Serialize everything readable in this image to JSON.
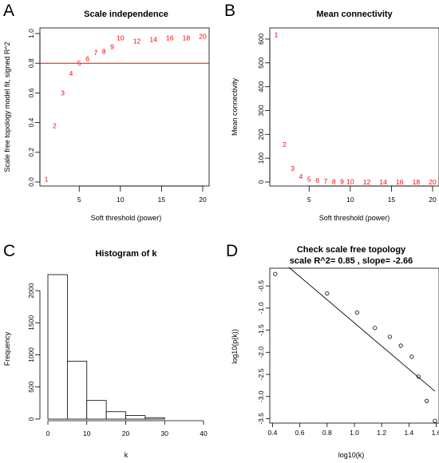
{
  "panels": [
    {
      "letter": "A"
    },
    {
      "letter": "B"
    },
    {
      "letter": "C"
    },
    {
      "letter": "D"
    }
  ],
  "colors": {
    "red": "#ff0000",
    "black": "#000000"
  },
  "chart_data": [
    {
      "type": "scatter",
      "title": "Scale independence",
      "xlabel": "Soft threshold (power)",
      "ylabel": "Scale free topology model fit, signed R^2",
      "xlim": [
        1,
        20
      ],
      "ylim": [
        0,
        1.0
      ],
      "xticks": [
        5,
        10,
        15,
        20
      ],
      "yticks": [
        0.0,
        0.2,
        0.4,
        0.6,
        0.8,
        1.0
      ],
      "hline": 0.8,
      "points": [
        {
          "x": 1,
          "y": 0.02,
          "label": "1"
        },
        {
          "x": 2,
          "y": 0.38,
          "label": "2"
        },
        {
          "x": 3,
          "y": 0.6,
          "label": "3"
        },
        {
          "x": 4,
          "y": 0.73,
          "label": "4"
        },
        {
          "x": 5,
          "y": 0.8,
          "label": "5"
        },
        {
          "x": 6,
          "y": 0.83,
          "label": "6"
        },
        {
          "x": 7,
          "y": 0.87,
          "label": "7"
        },
        {
          "x": 8,
          "y": 0.88,
          "label": "8"
        },
        {
          "x": 9,
          "y": 0.91,
          "label": "9"
        },
        {
          "x": 10,
          "y": 0.97,
          "label": "10"
        },
        {
          "x": 12,
          "y": 0.95,
          "label": "12"
        },
        {
          "x": 14,
          "y": 0.96,
          "label": "14"
        },
        {
          "x": 16,
          "y": 0.97,
          "label": "16"
        },
        {
          "x": 18,
          "y": 0.97,
          "label": "18"
        },
        {
          "x": 20,
          "y": 0.98,
          "label": "20"
        }
      ]
    },
    {
      "type": "scatter",
      "title": "Mean connectivity",
      "xlabel": "Soft threshold (power)",
      "ylabel": "Mean connectivity",
      "xlim": [
        1,
        20
      ],
      "ylim": [
        0,
        630
      ],
      "xticks": [
        5,
        10,
        15,
        20
      ],
      "yticks": [
        0,
        100,
        200,
        300,
        400,
        500,
        600
      ],
      "points": [
        {
          "x": 1,
          "y": 618,
          "label": "1"
        },
        {
          "x": 2,
          "y": 158,
          "label": "2"
        },
        {
          "x": 3,
          "y": 57,
          "label": "3"
        },
        {
          "x": 4,
          "y": 24,
          "label": "4"
        },
        {
          "x": 5,
          "y": 11,
          "label": "5"
        },
        {
          "x": 6,
          "y": 6,
          "label": "6"
        },
        {
          "x": 7,
          "y": 3,
          "label": "7"
        },
        {
          "x": 8,
          "y": 2,
          "label": "8"
        },
        {
          "x": 9,
          "y": 1,
          "label": "9"
        },
        {
          "x": 10,
          "y": 1,
          "label": "10"
        },
        {
          "x": 12,
          "y": 0,
          "label": "12"
        },
        {
          "x": 14,
          "y": 0,
          "label": "14"
        },
        {
          "x": 16,
          "y": 0,
          "label": "16"
        },
        {
          "x": 18,
          "y": 0,
          "label": "18"
        },
        {
          "x": 20,
          "y": 0,
          "label": "20"
        }
      ]
    },
    {
      "type": "bar",
      "title": "Histogram of k",
      "xlabel": "k",
      "ylabel": "Frequency",
      "xlim": [
        0,
        40
      ],
      "ylim": [
        0,
        2300
      ],
      "xticks": [
        0,
        10,
        20,
        30,
        40
      ],
      "yticks": [
        0,
        500,
        1000,
        1500,
        2000
      ],
      "bins": [
        {
          "start": 0,
          "end": 5,
          "count": 2250
        },
        {
          "start": 5,
          "end": 10,
          "count": 900
        },
        {
          "start": 10,
          "end": 15,
          "count": 290
        },
        {
          "start": 15,
          "end": 20,
          "count": 115
        },
        {
          "start": 20,
          "end": 25,
          "count": 55
        },
        {
          "start": 25,
          "end": 30,
          "count": 22
        }
      ]
    },
    {
      "type": "scatter",
      "title": "Check scale free topology",
      "subtitle": "scale R^2= 0.85 , slope= -2.66",
      "xlabel": "log10(k)",
      "ylabel": "log10(p(k))",
      "xlim": [
        0.38,
        1.62
      ],
      "ylim": [
        -3.6,
        -0.1
      ],
      "xticks": [
        0.4,
        0.6,
        0.8,
        1.0,
        1.2,
        1.4,
        1.6
      ],
      "yticks": [
        -0.5,
        -1.0,
        -1.5,
        -2.0,
        -2.5,
        -3.0,
        -3.5
      ],
      "points": [
        {
          "x": 0.42,
          "y": -0.23
        },
        {
          "x": 0.8,
          "y": -0.67
        },
        {
          "x": 1.02,
          "y": -1.1
        },
        {
          "x": 1.15,
          "y": -1.45
        },
        {
          "x": 1.26,
          "y": -1.65
        },
        {
          "x": 1.34,
          "y": -1.85
        },
        {
          "x": 1.42,
          "y": -2.1
        },
        {
          "x": 1.47,
          "y": -2.55
        },
        {
          "x": 1.53,
          "y": -3.1
        },
        {
          "x": 1.59,
          "y": -3.55
        }
      ],
      "fit_line": {
        "x1": 0.52,
        "y1": -0.08,
        "x2": 1.59,
        "y2": -2.88
      }
    }
  ]
}
